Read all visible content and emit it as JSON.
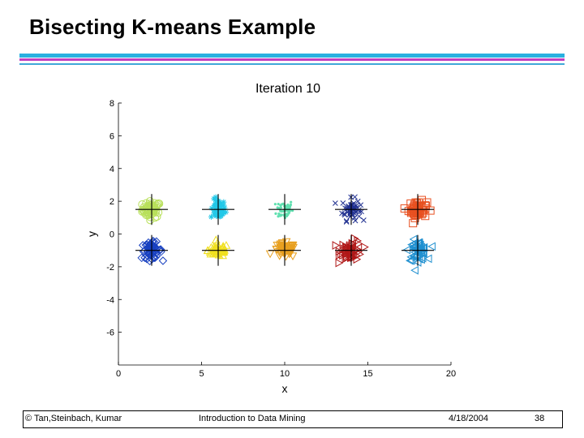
{
  "slide": {
    "title": "Bisecting K-means Example",
    "rule_colors": [
      "#2ab0e0",
      "#c040c0",
      "#40a8d8"
    ]
  },
  "footer": {
    "copyright": "© Tan,Steinbach, Kumar",
    "course": "Introduction to Data Mining",
    "date": "4/18/2004",
    "page": "38"
  },
  "chart_data": {
    "type": "scatter",
    "title": "Iteration 10",
    "xlabel": "x",
    "ylabel": "y",
    "xlim": [
      0,
      20
    ],
    "ylim": [
      -8,
      8
    ],
    "xticks": [
      0,
      5,
      10,
      15,
      20
    ],
    "yticks": [
      8,
      6,
      4,
      2,
      0,
      -2,
      -4,
      -6
    ],
    "grid": false,
    "clusters": [
      {
        "marker": "circle",
        "color": "#b8e05a",
        "center": [
          2,
          1.5
        ],
        "spread": [
          0.5,
          0.45
        ]
      },
      {
        "marker": "star",
        "color": "#22c8e8",
        "center": [
          6,
          1.5
        ],
        "spread": [
          0.4,
          0.55
        ]
      },
      {
        "marker": "dot",
        "color": "#60e0b0",
        "center": [
          10,
          1.5
        ],
        "spread": [
          0.45,
          0.55
        ]
      },
      {
        "marker": "x",
        "color": "#203090",
        "center": [
          14,
          1.5
        ],
        "spread": [
          0.5,
          0.6
        ]
      },
      {
        "marker": "square",
        "color": "#e85020",
        "center": [
          18,
          1.5
        ],
        "spread": [
          0.5,
          0.45
        ]
      },
      {
        "marker": "diamond",
        "color": "#1840c0",
        "center": [
          2,
          -1
        ],
        "spread": [
          0.55,
          0.45
        ]
      },
      {
        "marker": "triangle-up",
        "color": "#f0e020",
        "center": [
          6,
          -1
        ],
        "spread": [
          0.55,
          0.35
        ]
      },
      {
        "marker": "triangle-down",
        "color": "#e8a020",
        "center": [
          10,
          -1
        ],
        "spread": [
          0.6,
          0.4
        ]
      },
      {
        "marker": "triangle-right",
        "color": "#b01818",
        "center": [
          14,
          -1
        ],
        "spread": [
          0.6,
          0.55
        ]
      },
      {
        "marker": "triangle-left",
        "color": "#2090d0",
        "center": [
          18,
          -1
        ],
        "spread": [
          0.5,
          0.55
        ]
      }
    ]
  }
}
